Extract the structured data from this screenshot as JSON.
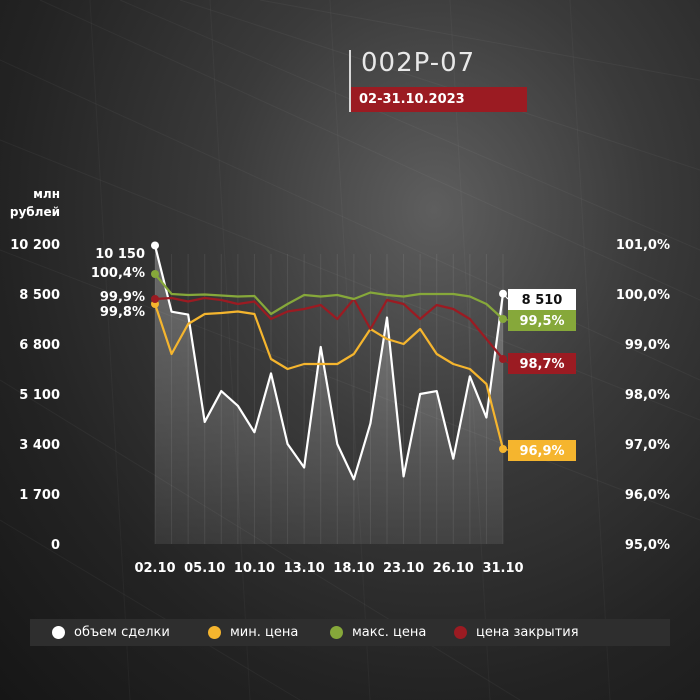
{
  "header": {
    "title": "002P-07",
    "date_range": "02-31.10.2023"
  },
  "colors": {
    "volume": "#ffffff",
    "min_price": "#f5b52e",
    "max_price": "#86a83a",
    "close_price": "#9b1b22",
    "date_badge": "#9b1b22"
  },
  "chart_data": {
    "type": "line",
    "title": "002P-07",
    "subtitle": "02-31.10.2023",
    "ylabel_left": "млн рублей",
    "x_tick_labels": [
      "02.10",
      "05.10",
      "10.10",
      "13.10",
      "18.10",
      "23.10",
      "26.10",
      "31.10"
    ],
    "y_left_ticks": [
      "0",
      "1 700",
      "3 400",
      "5 100",
      "6 800",
      "8 500",
      "10 200"
    ],
    "y_left_range": [
      0,
      10200
    ],
    "y_right_ticks": [
      "95,0%",
      "96,0%",
      "97,0%",
      "98,0%",
      "99,0%",
      "100,0%",
      "101,0%"
    ],
    "y_right_range": [
      95.0,
      101.0
    ],
    "n_points": 22,
    "series": [
      {
        "name": "объем сделки",
        "key": "volume",
        "axis": "left",
        "color": "#ffffff",
        "filled": true,
        "values": [
          10150,
          7900,
          7800,
          4150,
          5200,
          4700,
          3800,
          5800,
          3400,
          2600,
          6700,
          3400,
          2200,
          4100,
          7700,
          2300,
          5100,
          5200,
          2900,
          5700,
          4300,
          8510
        ]
      },
      {
        "name": "мин. цена",
        "key": "min_price",
        "axis": "right",
        "color": "#f5b52e",
        "filled": false,
        "values": [
          99.8,
          98.8,
          99.4,
          99.6,
          99.62,
          99.65,
          99.6,
          98.7,
          98.5,
          98.6,
          98.6,
          98.6,
          98.8,
          99.3,
          99.1,
          99.0,
          99.3,
          98.8,
          98.6,
          98.5,
          98.2,
          96.9
        ]
      },
      {
        "name": "макс. цена",
        "key": "max_price",
        "axis": "right",
        "color": "#86a83a",
        "filled": false,
        "values": [
          100.4,
          100.0,
          99.98,
          99.99,
          99.97,
          99.95,
          99.96,
          99.6,
          99.8,
          99.98,
          99.95,
          99.98,
          99.9,
          100.03,
          99.98,
          99.95,
          100.0,
          100.0,
          100.0,
          99.95,
          99.8,
          99.5
        ]
      },
      {
        "name": "цена закрытия",
        "key": "close_price",
        "axis": "right",
        "color": "#9b1b22",
        "filled": false,
        "values": [
          99.9,
          99.92,
          99.85,
          99.92,
          99.88,
          99.8,
          99.85,
          99.5,
          99.65,
          99.7,
          99.78,
          99.5,
          99.9,
          99.3,
          99.88,
          99.8,
          99.5,
          99.78,
          99.7,
          99.5,
          99.1,
          98.7
        ]
      }
    ],
    "left_callouts": [
      {
        "series": "volume",
        "text": "10 150"
      },
      {
        "series": "max_price",
        "text": "100,4%"
      },
      {
        "series": "close_price",
        "text": "99,9%"
      },
      {
        "series": "min_price",
        "text": "99,8%"
      }
    ],
    "right_labels": [
      {
        "series": "volume",
        "text": "8 510"
      },
      {
        "series": "max_price",
        "text": "99,5%"
      },
      {
        "series": "close_price",
        "text": "98,7%"
      },
      {
        "series": "min_price",
        "text": "96,9%"
      }
    ],
    "legend": [
      {
        "label": "объем сделки",
        "color": "#ffffff"
      },
      {
        "label": "мин. цена",
        "color": "#f5b52e"
      },
      {
        "label": "макс. цена",
        "color": "#86a83a"
      },
      {
        "label": "цена закрытия",
        "color": "#9b1b22"
      }
    ],
    "legend_position": "bottom",
    "grid": "vertical"
  }
}
